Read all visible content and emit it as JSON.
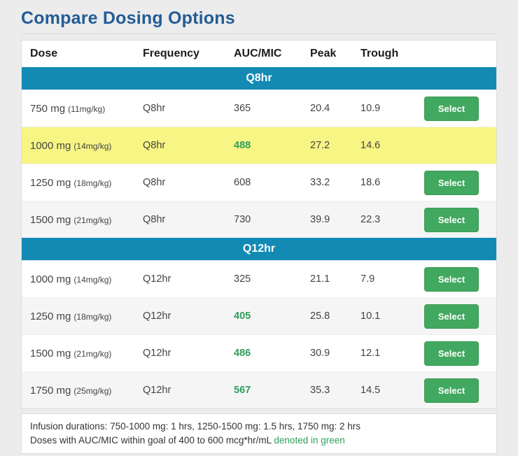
{
  "page": {
    "title": "Compare Dosing Options"
  },
  "table": {
    "columns": [
      "Dose",
      "Frequency",
      "AUC/MIC",
      "Peak",
      "Trough"
    ],
    "select_label": "Select",
    "sections": [
      {
        "label": "Q8hr",
        "rows": [
          {
            "dose": "750 mg",
            "dose_detail": "(11mg/kg)",
            "frequency": "Q8hr",
            "auc_mic": "365",
            "auc_in_goal": false,
            "peak": "20.4",
            "trough": "10.9",
            "selected": false
          },
          {
            "dose": "1000 mg",
            "dose_detail": "(14mg/kg)",
            "frequency": "Q8hr",
            "auc_mic": "488",
            "auc_in_goal": true,
            "peak": "27.2",
            "trough": "14.6",
            "selected": true
          },
          {
            "dose": "1250 mg",
            "dose_detail": "(18mg/kg)",
            "frequency": "Q8hr",
            "auc_mic": "608",
            "auc_in_goal": false,
            "peak": "33.2",
            "trough": "18.6",
            "selected": false
          },
          {
            "dose": "1500 mg",
            "dose_detail": "(21mg/kg)",
            "frequency": "Q8hr",
            "auc_mic": "730",
            "auc_in_goal": false,
            "peak": "39.9",
            "trough": "22.3",
            "selected": false
          }
        ]
      },
      {
        "label": "Q12hr",
        "rows": [
          {
            "dose": "1000 mg",
            "dose_detail": "(14mg/kg)",
            "frequency": "Q12hr",
            "auc_mic": "325",
            "auc_in_goal": false,
            "peak": "21.1",
            "trough": "7.9",
            "selected": false
          },
          {
            "dose": "1250 mg",
            "dose_detail": "(18mg/kg)",
            "frequency": "Q12hr",
            "auc_mic": "405",
            "auc_in_goal": true,
            "peak": "25.8",
            "trough": "10.1",
            "selected": false
          },
          {
            "dose": "1500 mg",
            "dose_detail": "(21mg/kg)",
            "frequency": "Q12hr",
            "auc_mic": "486",
            "auc_in_goal": true,
            "peak": "30.9",
            "trough": "12.1",
            "selected": false
          },
          {
            "dose": "1750 mg",
            "dose_detail": "(25mg/kg)",
            "frequency": "Q12hr",
            "auc_mic": "567",
            "auc_in_goal": true,
            "peak": "35.3",
            "trough": "14.5",
            "selected": false
          }
        ]
      }
    ]
  },
  "footer": {
    "line1": "Infusion durations: 750-1000 mg: 1 hrs, 1250-1500 mg: 1.5 hrs, 1750 mg: 2 hrs",
    "line2_prefix": "Doses with AUC/MIC within goal of 400 to 600 mcg*hr/mL ",
    "line2_green": "denoted in green"
  },
  "colors": {
    "title": "#235c97",
    "section_bar": "#128ab4",
    "in_goal_green": "#2e9e5a",
    "select_button": "#41a85f",
    "highlight_row": "#f7f584"
  }
}
